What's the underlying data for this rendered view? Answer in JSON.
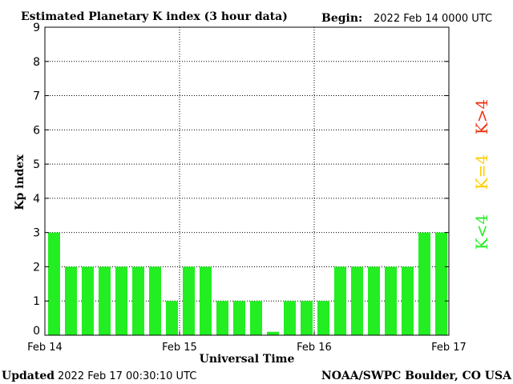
{
  "header": {
    "title": "Estimated Planetary K index (3 hour data)",
    "begin_label": "Begin:",
    "begin_value": "2022 Feb 14 0000 UTC"
  },
  "footer": {
    "updated_label": "Updated",
    "updated_value": "2022 Feb 17 00:30:10 UTC",
    "credit": "NOAA/SWPC Boulder, CO USA"
  },
  "legend": {
    "low": "K<4",
    "mid": "K=4",
    "high": "K>4"
  },
  "colors": {
    "low": "#22ee22",
    "mid": "#ffcc00",
    "high": "#ee3311",
    "grid": "#000000",
    "axis": "#000000"
  },
  "chart_data": {
    "type": "bar",
    "title": "Estimated Planetary K index (3 hour data)",
    "xlabel": "Universal Time",
    "ylabel": "Kp index",
    "ylim": [
      0,
      9
    ],
    "yticks": [
      0,
      1,
      2,
      3,
      4,
      5,
      6,
      7,
      8,
      9
    ],
    "xlim": [
      0,
      72
    ],
    "xticks": [
      {
        "hour": 0,
        "label": "Feb 14"
      },
      {
        "hour": 24,
        "label": "Feb 15"
      },
      {
        "hour": 48,
        "label": "Feb 16"
      },
      {
        "hour": 72,
        "label": "Feb 17"
      }
    ],
    "interval_hours": 3,
    "values": [
      3,
      2,
      2,
      2,
      2,
      2,
      2,
      1,
      2,
      2,
      1,
      1,
      1,
      0.1,
      1,
      1,
      1,
      2,
      2,
      2,
      2,
      2,
      3,
      3
    ],
    "grid": true,
    "grid_style": "dotted"
  }
}
